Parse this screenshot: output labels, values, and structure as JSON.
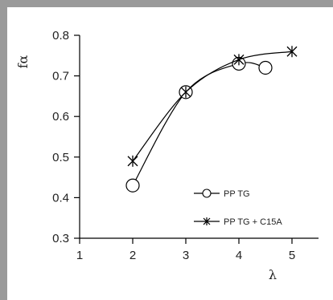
{
  "chart_data": {
    "type": "line",
    "xlabel": "λ",
    "ylabel": "fα",
    "xlim": [
      1,
      5.5
    ],
    "ylim": [
      0.3,
      0.8
    ],
    "x_ticks": [
      "1",
      "2",
      "3",
      "4",
      "5"
    ],
    "y_ticks": [
      "0.3",
      "0.4",
      "0.5",
      "0.6",
      "0.7",
      "0.8"
    ],
    "legend_position": "lower-right",
    "grid": false,
    "series": [
      {
        "name": "PP TG",
        "marker": "circle",
        "color": "#000000",
        "points": [
          [
            2,
            0.43
          ],
          [
            3,
            0.66
          ],
          [
            4,
            0.73
          ],
          [
            4.5,
            0.72
          ]
        ]
      },
      {
        "name": "PP TG + C15A",
        "marker": "asterisk",
        "color": "#000000",
        "points": [
          [
            2,
            0.49
          ],
          [
            3,
            0.66
          ],
          [
            4,
            0.74
          ],
          [
            5,
            0.76
          ]
        ]
      }
    ]
  },
  "colors": {
    "frame": "#9a9a9a",
    "ink": "#000000"
  }
}
